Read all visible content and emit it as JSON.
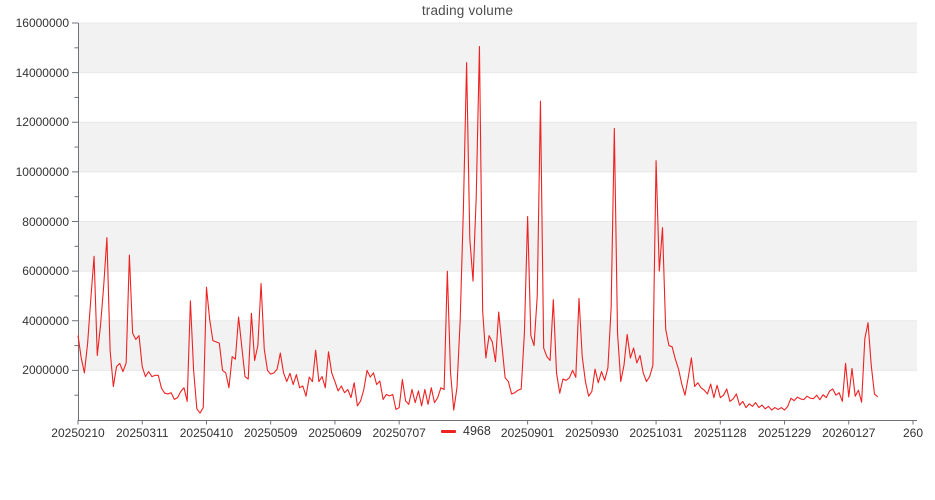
{
  "title": "trading volume",
  "legend": {
    "label": "4968",
    "marker_color": "#ee2222"
  },
  "colors": {
    "line": "#ee2222",
    "band_gray": "#f2f2f2",
    "band_white": "#ffffff",
    "grid_line": "#e8e8e8",
    "axis_line": "#6e7079",
    "label_text": "#333333",
    "title_text": "#4d4d4d"
  },
  "chart_data": {
    "type": "line",
    "title": "trading volume",
    "legend_entries": [
      "4968"
    ],
    "legend_position": "bottom",
    "grid": "alternating-horizontal-bands",
    "ylim": [
      0,
      16000000
    ],
    "y_tick_interval": 2000000,
    "y_tick_labels": [
      "2000000",
      "4000000",
      "6000000",
      "8000000",
      "10000000",
      "12000000",
      "14000000",
      "16000000"
    ],
    "x_range": [
      0,
      260
    ],
    "x_ticks": [
      {
        "label": "20250210",
        "index": 0
      },
      {
        "label": "20250311",
        "index": 20
      },
      {
        "label": "20250410",
        "index": 40
      },
      {
        "label": "20250509",
        "index": 60
      },
      {
        "label": "20250609",
        "index": 80
      },
      {
        "label": "20250707",
        "index": 100
      },
      {
        "label": "20250901",
        "index": 140
      },
      {
        "label": "20250930",
        "index": 160
      },
      {
        "label": "20251031",
        "index": 180
      },
      {
        "label": "20251128",
        "index": 200
      },
      {
        "label": "20251229",
        "index": 220
      },
      {
        "label": "20260127",
        "index": 240
      },
      {
        "label": "260",
        "index": 260
      }
    ],
    "series": [
      {
        "name": "4968",
        "color": "#ee2222",
        "values": [
          3400000,
          2500000,
          1900000,
          3100000,
          4900000,
          6600000,
          2600000,
          3800000,
          5400000,
          7350000,
          2800000,
          1350000,
          2150000,
          2280000,
          1950000,
          2300000,
          6650000,
          3500000,
          3250000,
          3400000,
          2150000,
          1750000,
          1950000,
          1750000,
          1800000,
          1800000,
          1280000,
          1080000,
          1050000,
          1100000,
          830000,
          900000,
          1150000,
          1300000,
          750000,
          4800000,
          2000000,
          450000,
          280000,
          500000,
          5350000,
          4050000,
          3200000,
          3150000,
          3100000,
          2000000,
          1900000,
          1300000,
          2550000,
          2450000,
          4150000,
          2950000,
          1750000,
          1650000,
          4300000,
          2400000,
          3000000,
          5500000,
          2850000,
          2000000,
          1850000,
          1900000,
          2050000,
          2700000,
          1900000,
          1550000,
          1880000,
          1430000,
          1830000,
          1300000,
          1370000,
          960000,
          1730000,
          1550000,
          2810000,
          1550000,
          1750000,
          1300000,
          2750000,
          1900000,
          1550000,
          1170000,
          1370000,
          1100000,
          1230000,
          900000,
          1500000,
          570000,
          770000,
          1230000,
          2000000,
          1730000,
          1900000,
          1430000,
          1570000,
          830000,
          1030000,
          970000,
          1030000,
          430000,
          500000,
          1630000,
          770000,
          630000,
          1230000,
          700000,
          1170000,
          570000,
          1230000,
          630000,
          1300000,
          700000,
          900000,
          1300000,
          1230000,
          6000000,
          1900000,
          400000,
          1300000,
          4000000,
          8500000,
          14400000,
          7300000,
          5600000,
          9000000,
          15050000,
          4400000,
          2500000,
          3400000,
          3150000,
          2350000,
          4350000,
          3000000,
          1700000,
          1550000,
          1050000,
          1100000,
          1200000,
          1250000,
          3500000,
          8200000,
          3400000,
          3000000,
          5000000,
          12850000,
          2900000,
          2550000,
          2400000,
          4850000,
          1900000,
          1080000,
          1650000,
          1600000,
          1700000,
          2000000,
          1720000,
          4900000,
          2560000,
          1550000,
          960000,
          1150000,
          2050000,
          1500000,
          1950000,
          1600000,
          2100000,
          4500000,
          11750000,
          3500000,
          1550000,
          2200000,
          3450000,
          2500000,
          2900000,
          2300000,
          2600000,
          1900000,
          1550000,
          1750000,
          2200000,
          10450000,
          6000000,
          7750000,
          3650000,
          3000000,
          2950000,
          2450000,
          2050000,
          1450000,
          1000000,
          1700000,
          2500000,
          1350000,
          1500000,
          1300000,
          1200000,
          1050000,
          1450000,
          900000,
          1400000,
          900000,
          1000000,
          1250000,
          750000,
          850000,
          1050000,
          600000,
          750000,
          500000,
          650000,
          550000,
          700000,
          500000,
          600000,
          450000,
          550000,
          400000,
          500000,
          420000,
          500000,
          400000,
          550000,
          880000,
          780000,
          920000,
          850000,
          820000,
          960000,
          880000,
          860000,
          1000000,
          820000,
          1020000,
          900000,
          1160000,
          1250000,
          1000000,
          1100000,
          750000,
          2280000,
          930000,
          2080000,
          960000,
          1200000,
          720000,
          3280000,
          3920000,
          2200000,
          1050000,
          930000
        ]
      }
    ]
  }
}
